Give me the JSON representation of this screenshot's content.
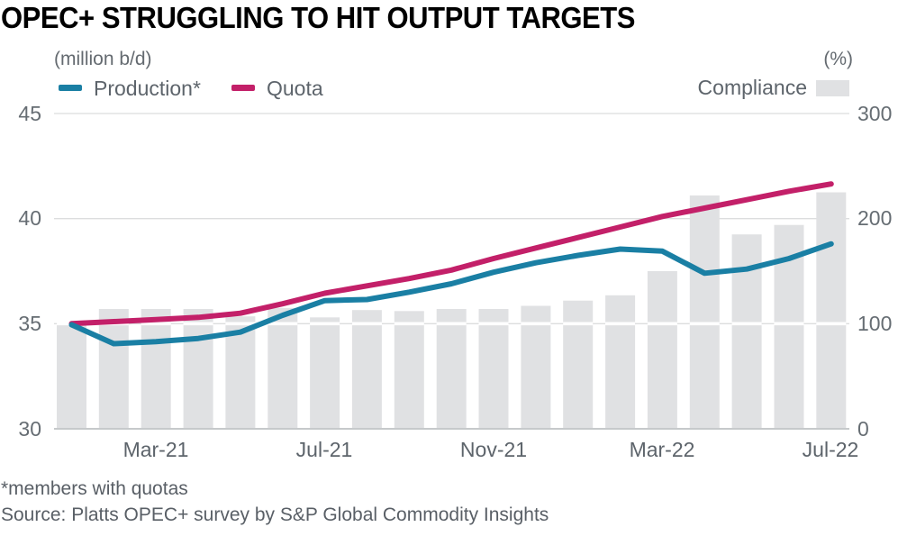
{
  "header": {
    "title": "OPEC+ STRUGGLING TO HIT OUTPUT TARGETS",
    "left_unit": "(million b/d)",
    "right_unit": "(%)"
  },
  "legend": {
    "production_label": "Production*",
    "quota_label": "Quota",
    "compliance_label": "Compliance"
  },
  "footer": {
    "footnote": "*members with quotas",
    "source": "Source: Platts OPEC+ survey by S&P Global Commodity Insights"
  },
  "colors": {
    "production": "#1a7fa4",
    "quota": "#c32069",
    "compliance_bar": "#e0e1e3",
    "gridline": "#dcddde",
    "baseline": "#c6c9cb",
    "text_gray": "#5d646b"
  },
  "axes": {
    "left_ticks": [
      "45",
      "40",
      "35",
      "30"
    ],
    "right_ticks": [
      "300",
      "200",
      "100",
      "0"
    ],
    "x_ticks": [
      "Mar-21",
      "Jul-21",
      "Nov-21",
      "Mar-22",
      "Jul-22"
    ]
  },
  "chart_data": {
    "type": "combo-bar-line",
    "title": "OPEC+ STRUGGLING TO HIT OUTPUT TARGETS",
    "x": [
      "Jan-21",
      "Feb-21",
      "Mar-21",
      "Apr-21",
      "May-21",
      "Jun-21",
      "Jul-21",
      "Aug-21",
      "Sep-21",
      "Oct-21",
      "Nov-21",
      "Dec-21",
      "Jan-22",
      "Feb-22",
      "Mar-22",
      "Apr-22",
      "May-22",
      "Jun-22",
      "Jul-22"
    ],
    "left_axis_label": "(million b/d)",
    "right_axis_label": "(%)",
    "left_ylim": [
      30,
      45
    ],
    "right_ylim": [
      0,
      300
    ],
    "grid": "horizontal",
    "legend_position": "top",
    "series": [
      {
        "name": "Production*",
        "type": "line",
        "axis": "left",
        "unit": "million b/d",
        "values": [
          34.95,
          34.05,
          34.15,
          34.3,
          34.6,
          35.4,
          36.1,
          36.15,
          36.5,
          36.9,
          37.45,
          37.9,
          38.25,
          38.55,
          38.45,
          37.4,
          37.6,
          38.1,
          38.8
        ]
      },
      {
        "name": "Quota",
        "type": "line",
        "axis": "left",
        "unit": "million b/d",
        "values": [
          35.0,
          35.1,
          35.2,
          35.3,
          35.5,
          35.95,
          36.45,
          36.8,
          37.15,
          37.55,
          38.1,
          38.6,
          39.1,
          39.6,
          40.1,
          40.5,
          40.9,
          41.3,
          41.65
        ]
      },
      {
        "name": "Compliance",
        "type": "bar",
        "axis": "right",
        "unit": "%",
        "values": [
          100,
          114,
          114,
          114,
          107,
          115,
          106,
          113,
          112,
          114,
          114,
          117,
          122,
          127,
          150,
          222,
          185,
          194,
          225
        ]
      }
    ],
    "highlight_line": {
      "axis": "right",
      "value": 100,
      "style": "white line drawn across bars"
    }
  }
}
